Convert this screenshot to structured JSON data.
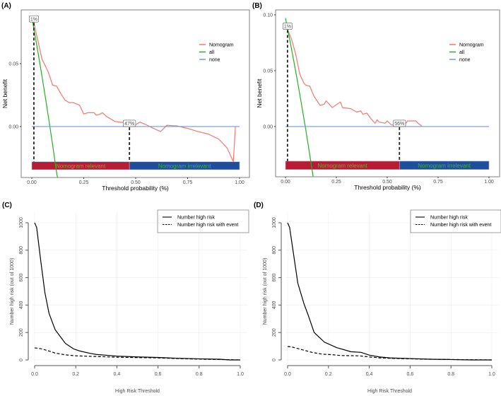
{
  "chart_data": [
    {
      "panel_label": "(A)",
      "type": "line",
      "xlabel": "Threshold probability (%)",
      "ylabel": "Net benefit",
      "xlim": [
        0,
        1
      ],
      "ylim": [
        -0.0405,
        0.0927
      ],
      "xticks": [
        "0.00",
        "0.25",
        "0.50",
        "0.75",
        "1.00"
      ],
      "xtick_values": [
        0,
        0.25,
        0.5,
        0.75,
        1
      ],
      "yticks": [
        "0.00",
        "0.05"
      ],
      "ytick_values": [
        0,
        0.05
      ],
      "legend_placement": "top-right",
      "series": [
        {
          "name": "Nomogram",
          "color": "#f8766d",
          "x": [
            0.01,
            0.02,
            0.03,
            0.04,
            0.05,
            0.06,
            0.08,
            0.1,
            0.12,
            0.14,
            0.16,
            0.18,
            0.2,
            0.23,
            0.25,
            0.27,
            0.3,
            0.31,
            0.33,
            0.34,
            0.36,
            0.4,
            0.45,
            0.47,
            0.5,
            0.52,
            0.55,
            0.58,
            0.62,
            0.65,
            0.7,
            0.75,
            0.8,
            0.85,
            0.9,
            0.94,
            0.97,
            0.98
          ],
          "y": [
            0.083,
            0.075,
            0.068,
            0.06,
            0.053,
            0.05,
            0.043,
            0.033,
            0.032,
            0.026,
            0.021,
            0.019,
            0.019,
            0.017,
            0.01,
            0.011,
            0.011,
            0.009,
            0.01,
            0.011,
            0.008,
            0.004,
            0.003,
            0.002,
            0.0015,
            0.0035,
            0.0015,
            -0.001,
            -0.004,
            0.001,
            0.0005,
            -0.0015,
            -0.004,
            -0.006,
            -0.01,
            -0.017,
            -0.028,
            0
          ]
        },
        {
          "name": "all",
          "color": "#1fb31f",
          "x": [
            0,
            0.02,
            0.04,
            0.06,
            0.08,
            0.1,
            0.12,
            0.124
          ],
          "y": [
            0.087,
            0.0684,
            0.049,
            0.0287,
            0.0076,
            -0.0144,
            -0.0375,
            -0.0405
          ]
        },
        {
          "name": "none",
          "color": "#6f9ae0",
          "x": [
            0,
            1
          ],
          "y": [
            0,
            0
          ]
        }
      ],
      "cutoffs": [
        {
          "x": 0.01,
          "y": 0.083,
          "label": "1%"
        },
        {
          "x": 0.47,
          "y": 0,
          "label": "47%"
        }
      ],
      "bands": [
        {
          "label": "Nomogram relevant",
          "from": 0,
          "to": 0.47,
          "color": "#b81c34",
          "text_color": "#7aa33a"
        },
        {
          "label": "Nomogram irrelevant",
          "from": 0.47,
          "to": 1,
          "color": "#1f4e9c",
          "text_color": "#3fae3f"
        }
      ],
      "band_y": [
        -0.0343,
        -0.028
      ]
    },
    {
      "panel_label": "(B)",
      "type": "line",
      "xlabel": "Threshold probability (%)",
      "ylabel": "Net benefit",
      "xlim": [
        0,
        1
      ],
      "ylim": [
        -0.045,
        0.1044
      ],
      "xticks": [
        "0.00",
        "0.25",
        "0.50",
        "0.75",
        "1.00"
      ],
      "xtick_values": [
        0,
        0.25,
        0.5,
        0.75,
        1
      ],
      "yticks": [
        "0.00",
        "0.05",
        "0.10"
      ],
      "ytick_values": [
        0,
        0.05,
        0.1
      ],
      "legend_placement": "top-right",
      "series": [
        {
          "name": "Nomogram",
          "color": "#f8766d",
          "x": [
            0.01,
            0.03,
            0.05,
            0.07,
            0.09,
            0.1,
            0.12,
            0.14,
            0.17,
            0.19,
            0.2,
            0.23,
            0.27,
            0.28,
            0.32,
            0.35,
            0.37,
            0.38,
            0.4,
            0.42,
            0.44,
            0.45,
            0.46,
            0.49,
            0.5,
            0.52,
            0.55,
            0.58,
            0.6,
            0.64,
            0.65,
            0.67
          ],
          "y": [
            0.087,
            0.078,
            0.065,
            0.047,
            0.039,
            0.037,
            0.036,
            0.027,
            0.019,
            0.02,
            0.023,
            0.017,
            0.022,
            0.017,
            0.016,
            0.013,
            0.014,
            0.011,
            0.012,
            0.007,
            0.003,
            0.006,
            0.004,
            0.003,
            0.005,
            0.0015,
            0.001,
            0,
            0.005,
            0.005,
            0.003,
            0.0005
          ]
        },
        {
          "name": "all",
          "color": "#1fb31f",
          "x": [
            0,
            0.02,
            0.04,
            0.06,
            0.08,
            0.1,
            0.12,
            0.136
          ],
          "y": [
            0.097,
            0.0786,
            0.0594,
            0.0394,
            0.0185,
            -0.0033,
            -0.0261,
            -0.045
          ]
        },
        {
          "name": "none",
          "color": "#6f9ae0",
          "x": [
            0,
            1
          ],
          "y": [
            0,
            0
          ]
        }
      ],
      "cutoffs": [
        {
          "x": 0.01,
          "y": 0.087,
          "label": "1%"
        },
        {
          "x": 0.56,
          "y": 0,
          "label": "56%"
        }
      ],
      "bands": [
        {
          "label": "Nomogram relevant",
          "from": 0,
          "to": 0.56,
          "color": "#b81c34",
          "text_color": "#7aa33a"
        },
        {
          "label": "Nomogram irrelevant",
          "from": 0.56,
          "to": 1,
          "color": "#1f4e9c",
          "text_color": "#3fae3f"
        }
      ],
      "band_y": [
        -0.0385,
        -0.031
      ]
    },
    {
      "panel_label": "(C)",
      "type": "line",
      "xlabel": "High Risk Threshold",
      "ylabel": "Number high risk (out of 1000)",
      "xlim": [
        0,
        1
      ],
      "ylim": [
        0,
        1000
      ],
      "xticks": [
        "0.0",
        "0.2",
        "0.4",
        "0.6",
        "0.8",
        "1.0"
      ],
      "xtick_values": [
        0,
        0.2,
        0.4,
        0.6,
        0.8,
        1
      ],
      "yticks": [
        "0",
        "200",
        "400",
        "600",
        "800",
        "1000"
      ],
      "ytick_values": [
        0,
        200,
        400,
        600,
        800,
        1000
      ],
      "grid": true,
      "legend_placement": "top-right",
      "series": [
        {
          "name": "Number high risk",
          "color": "#000000",
          "dash": false,
          "x": [
            0,
            0.01,
            0.03,
            0.05,
            0.07,
            0.1,
            0.13,
            0.15,
            0.19,
            0.22,
            0.27,
            0.3,
            0.4,
            0.5,
            0.6,
            0.7,
            0.8,
            0.9,
            0.95,
            1
          ],
          "y": [
            1000,
            965,
            720,
            490,
            340,
            220,
            160,
            120,
            80,
            65,
            48,
            40,
            28,
            22,
            18,
            12,
            8,
            5,
            0,
            0
          ]
        },
        {
          "name": "Number high risk with event",
          "color": "#000000",
          "dash": true,
          "x": [
            0,
            0.03,
            0.07,
            0.1,
            0.15,
            0.2,
            0.3,
            0.4,
            0.5,
            0.6,
            0.7,
            0.8,
            0.9,
            1
          ],
          "y": [
            88,
            82,
            65,
            50,
            37,
            30,
            25,
            20,
            17,
            15,
            10,
            6,
            3,
            0
          ]
        }
      ]
    },
    {
      "panel_label": "(D)",
      "type": "line",
      "xlabel": "High Risk Threshold",
      "ylabel": "Number high risk (out of 1000)",
      "xlim": [
        0,
        1
      ],
      "ylim": [
        0,
        1000
      ],
      "xticks": [
        "0.0",
        "0.2",
        "0.4",
        "0.6",
        "0.8",
        "1.0"
      ],
      "xtick_values": [
        0,
        0.2,
        0.4,
        0.6,
        0.8,
        1
      ],
      "yticks": [
        "0",
        "200",
        "400",
        "600",
        "800",
        "1000"
      ],
      "ytick_values": [
        0,
        200,
        400,
        600,
        800,
        1000
      ],
      "grid": true,
      "legend_placement": "top-right",
      "series": [
        {
          "name": "Number high risk",
          "color": "#000000",
          "dash": false,
          "x": [
            0,
            0.01,
            0.05,
            0.08,
            0.1,
            0.13,
            0.18,
            0.24,
            0.31,
            0.36,
            0.4,
            0.45,
            0.5,
            0.6,
            0.7,
            0.8,
            0.9,
            1
          ],
          "y": [
            1000,
            965,
            560,
            410,
            330,
            200,
            130,
            90,
            60,
            55,
            35,
            22,
            15,
            10,
            5,
            3,
            0,
            0
          ]
        },
        {
          "name": "Number high risk with event",
          "color": "#000000",
          "dash": true,
          "x": [
            0,
            0.02,
            0.07,
            0.12,
            0.17,
            0.22,
            0.26,
            0.35,
            0.4,
            0.45,
            0.5,
            0.6,
            0.7,
            0.8,
            1
          ],
          "y": [
            98,
            95,
            75,
            55,
            42,
            38,
            32,
            30,
            22,
            15,
            12,
            8,
            5,
            3,
            0
          ]
        }
      ]
    }
  ]
}
